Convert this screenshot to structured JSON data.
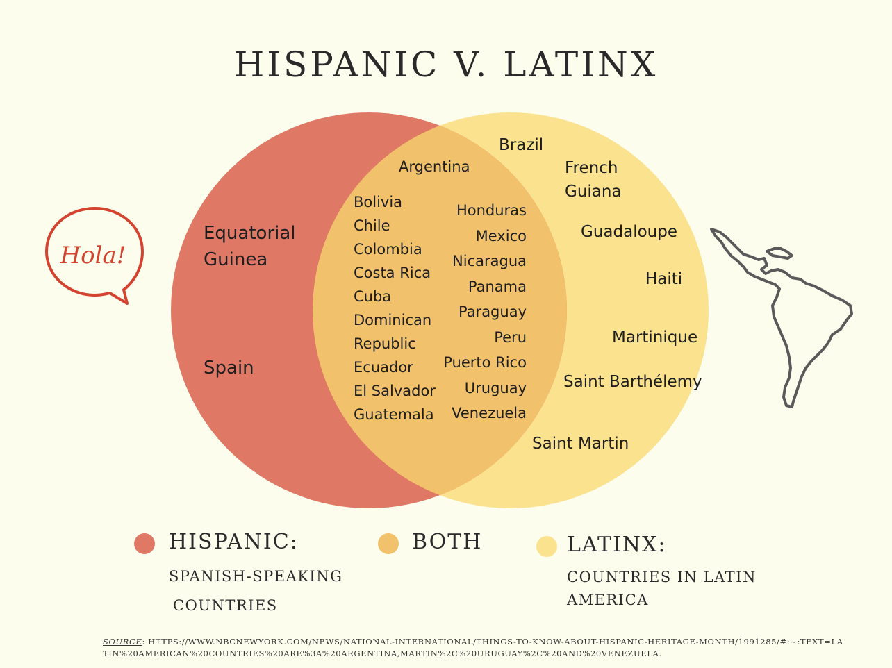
{
  "title": "HISPANIC V. LATINX",
  "colors": {
    "hispanic": "#e07866",
    "both": "#f2c16c",
    "latinx": "#fbe28f",
    "background": "#fdfdee"
  },
  "bubble_text": "Hola!",
  "hispanic_only": [
    "Equatorial",
    "Guinea",
    "Spain"
  ],
  "both_left": [
    "Argentina",
    "Bolivia",
    "Chile",
    "Colombia",
    "Costa Rica",
    "Cuba",
    "Dominican",
    "Republic",
    "Ecuador",
    "El Salvador",
    "Guatemala"
  ],
  "both_right": [
    "Honduras",
    "Mexico",
    "Nicaragua",
    "Panama",
    "Paraguay",
    "Peru",
    "Puerto Rico",
    "Uruguay",
    "Venezuela"
  ],
  "latinx_only": [
    "Brazil",
    "French",
    "Guiana",
    "Guadaloupe",
    "Haiti",
    "Martinique",
    "Saint Barthélemy",
    "Saint Martin"
  ],
  "legend": {
    "hispanic": {
      "title": "HISPANIC:",
      "desc1": "SPANISH-SPEAKING",
      "desc2": "COUNTRIES"
    },
    "both": {
      "title": "BOTH"
    },
    "latinx": {
      "title": "LATINX:",
      "desc1": "COUNTRIES IN LATIN",
      "desc2": "AMERICA"
    }
  },
  "source": {
    "label": "SOURCE",
    "text": ":  HTTPS://WWW.NBCNEWYORK.COM/NEWS/NATIONAL-INTERNATIONAL/THINGS-TO-KNOW-ABOUT-HISPANIC-HERITAGE-MONTH/1991285/#:~:TEXT=LATIN%20AMERICAN%20COUNTRIES%20ARE%3A%20ARGENTINA,MARTIN%2C%20URUGUAY%2C%20AND%20VENEZUELA."
  }
}
